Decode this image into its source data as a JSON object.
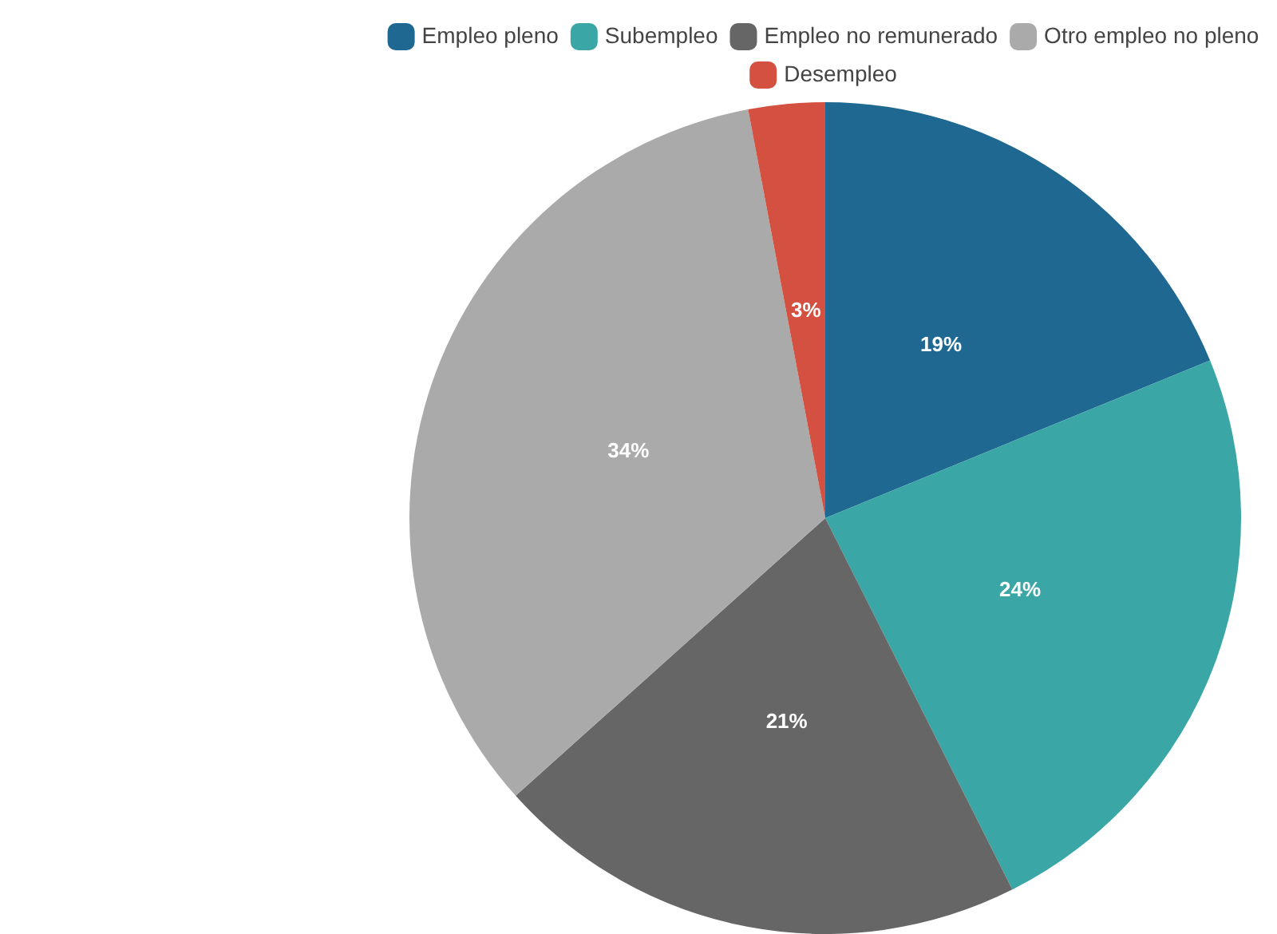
{
  "chart_data": {
    "type": "pie",
    "categories": [
      "Empleo pleno",
      "Subempleo",
      "Empleo no remunerado",
      "Otro empleo no pleno",
      "Desempleo"
    ],
    "values": [
      19,
      24,
      21,
      34,
      3
    ],
    "value_labels": [
      "19%",
      "24%",
      "21%",
      "34%",
      "3%"
    ],
    "colors": [
      "#1f6891",
      "#3aa6a6",
      "#666666",
      "#aaaaaa",
      "#d45040"
    ],
    "legend": "top"
  }
}
